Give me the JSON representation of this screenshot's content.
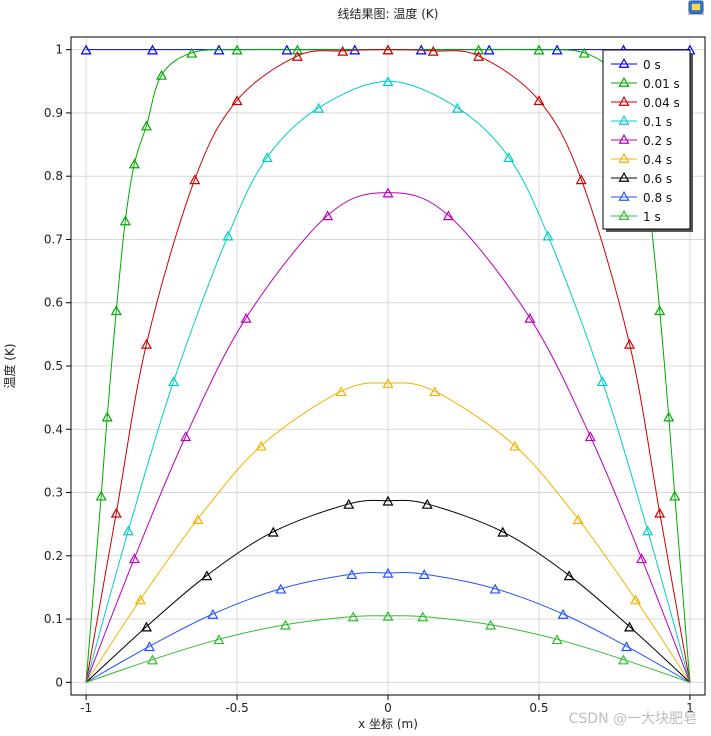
{
  "chart_data": {
    "type": "line",
    "title": "线结果图: 温度 (K)",
    "xlabel": "x 坐标 (m)",
    "ylabel": "温度 (K)",
    "xlim": [
      -1.05,
      1.05
    ],
    "ylim": [
      -0.02,
      1.02
    ],
    "xticks": [
      -1,
      -0.5,
      0,
      0.5,
      1
    ],
    "xtick_labels": [
      "-1",
      "-0.5",
      "0",
      "0.5",
      "1"
    ],
    "yticks": [
      0,
      0.1,
      0.2,
      0.3,
      0.4,
      0.5,
      0.6,
      0.7,
      0.8,
      0.9,
      1
    ],
    "ytick_labels": [
      "0",
      "0.1",
      "0.2",
      "0.3",
      "0.4",
      "0.5",
      "0.6",
      "0.7",
      "0.8",
      "0.9",
      "1"
    ],
    "grid": true,
    "legend_position": "top-right",
    "marker": "triangle",
    "series": [
      {
        "name": "0 s",
        "color": "#0000ff",
        "x": [
          -1,
          -0.78,
          -0.56,
          -0.335,
          -0.11,
          0.11,
          0.335,
          0.56,
          0.78,
          1
        ],
        "y": [
          1,
          1,
          1,
          1,
          1,
          1,
          1,
          1,
          1,
          1
        ]
      },
      {
        "name": "0.01 s",
        "color": "#00aa00",
        "x": [
          -1,
          -0.95,
          -0.93,
          -0.9,
          -0.87,
          -0.84,
          -0.8,
          -0.75,
          -0.65,
          -0.5,
          -0.3,
          0,
          0.3,
          0.5,
          0.65,
          0.75,
          0.8,
          0.84,
          0.87,
          0.9,
          0.93,
          0.95,
          1
        ],
        "y": [
          0,
          0.295,
          0.42,
          0.588,
          0.73,
          0.82,
          0.88,
          0.96,
          0.995,
          1,
          1,
          1,
          1,
          1,
          0.995,
          0.96,
          0.88,
          0.82,
          0.73,
          0.588,
          0.42,
          0.295,
          0
        ]
      },
      {
        "name": "0.04 s",
        "color": "#cc0000",
        "x": [
          -1,
          -0.9,
          -0.8,
          -0.64,
          -0.5,
          -0.3,
          -0.15,
          0,
          0.15,
          0.3,
          0.5,
          0.64,
          0.8,
          0.9,
          1
        ],
        "y": [
          0,
          0.268,
          0.535,
          0.795,
          0.92,
          0.99,
          0.998,
          1,
          0.998,
          0.99,
          0.92,
          0.795,
          0.535,
          0.268,
          0
        ]
      },
      {
        "name": "0.1 s",
        "color": "#00cccc",
        "x": [
          -1,
          -0.86,
          -0.71,
          -0.53,
          -0.4,
          -0.23,
          0,
          0.23,
          0.4,
          0.53,
          0.71,
          0.86,
          1
        ],
        "y": [
          0,
          0.24,
          0.476,
          0.706,
          0.83,
          0.908,
          0.95,
          0.908,
          0.83,
          0.706,
          0.476,
          0.24,
          0
        ]
      },
      {
        "name": "0.2 s",
        "color": "#bb00bb",
        "x": [
          -1,
          -0.84,
          -0.67,
          -0.47,
          -0.2,
          0,
          0.2,
          0.47,
          0.67,
          0.84,
          1
        ],
        "y": [
          0,
          0.196,
          0.389,
          0.576,
          0.738,
          0.774,
          0.738,
          0.576,
          0.389,
          0.196,
          0
        ]
      },
      {
        "name": "0.4 s",
        "color": "#f0b400",
        "x": [
          -1,
          -0.82,
          -0.63,
          -0.42,
          -0.155,
          0,
          0.155,
          0.42,
          0.63,
          0.82,
          1
        ],
        "y": [
          0,
          0.131,
          0.258,
          0.374,
          0.46,
          0.473,
          0.46,
          0.374,
          0.258,
          0.131,
          0
        ]
      },
      {
        "name": "0.6 s",
        "color": "#000000",
        "x": [
          -1,
          -0.8,
          -0.6,
          -0.38,
          -0.13,
          0,
          0.13,
          0.38,
          0.6,
          0.8,
          1
        ],
        "y": [
          0,
          0.088,
          0.169,
          0.238,
          0.282,
          0.287,
          0.282,
          0.238,
          0.169,
          0.088,
          0
        ]
      },
      {
        "name": "0.8 s",
        "color": "#2255ff",
        "x": [
          -1,
          -0.79,
          -0.58,
          -0.355,
          -0.12,
          0,
          0.12,
          0.355,
          0.58,
          0.79,
          1
        ],
        "y": [
          0,
          0.057,
          0.108,
          0.148,
          0.171,
          0.173,
          0.171,
          0.148,
          0.108,
          0.057,
          0
        ]
      },
      {
        "name": "1 s",
        "color": "#33bb33",
        "x": [
          -1,
          -0.78,
          -0.56,
          -0.34,
          -0.115,
          0,
          0.115,
          0.34,
          0.56,
          0.78,
          1
        ],
        "y": [
          0,
          0.036,
          0.068,
          0.091,
          0.104,
          0.105,
          0.104,
          0.091,
          0.068,
          0.036,
          0
        ]
      }
    ]
  },
  "watermark": "CSDN @一大块肥皂"
}
